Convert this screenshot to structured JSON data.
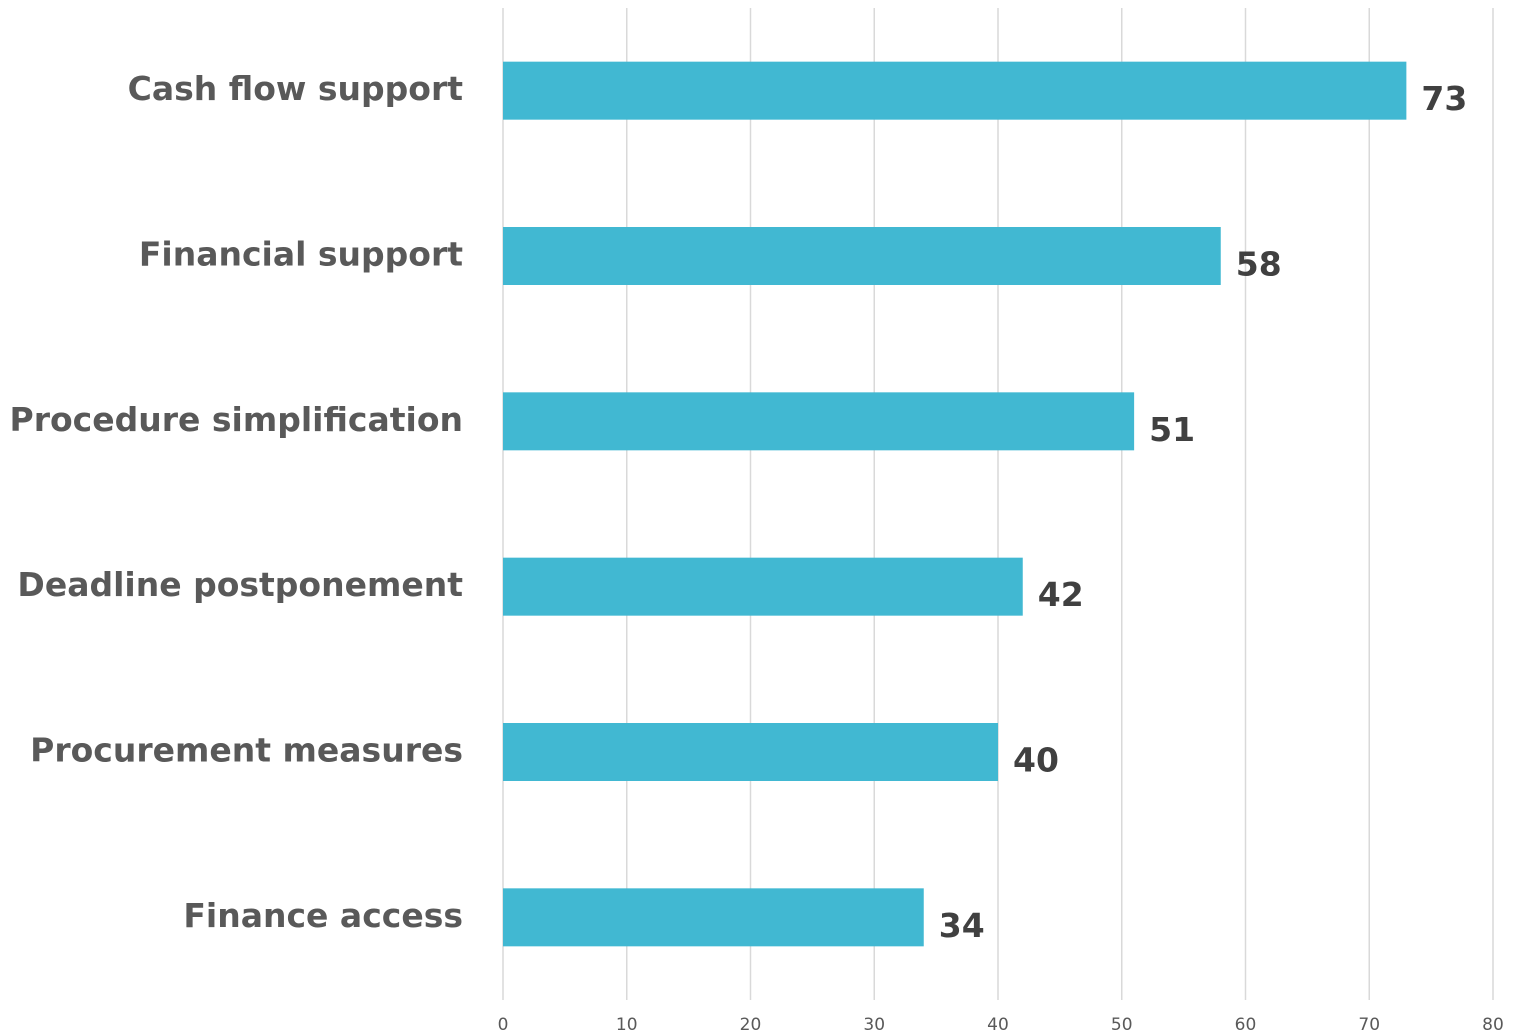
{
  "chart_data": {
    "type": "hbar",
    "categories": [
      "Cash flow support",
      "Financial support",
      "Procedure simplification",
      "Deadline postponement",
      "Procurement measures",
      "Finance access"
    ],
    "values": [
      73,
      58,
      51,
      42,
      40,
      34
    ],
    "color": "#41b8d2",
    "xlim": [
      0,
      80
    ],
    "xticks": [
      0,
      10,
      20,
      30,
      40,
      50,
      60,
      70,
      80
    ],
    "grid": true
  }
}
